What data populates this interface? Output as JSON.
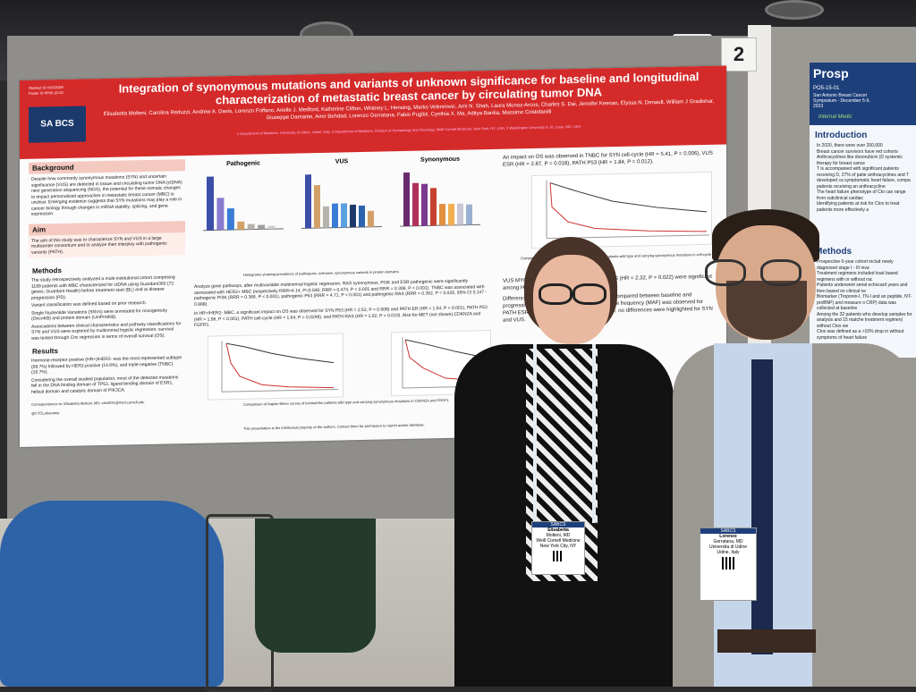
{
  "board_number": "2",
  "poster": {
    "title": "Integration of synonymous mutations and variants of unknown significance for baseline and longitudinal characterization of metastatic breast cancer by circulating tumor DNA",
    "authors": "Elisabetta Molteni, Carolina Reduzzi, Andrew A. Davis, Lorenzo Foffano, Arielle J. Medford, Katherine Clifton, Whitney L. Hensing, Marko Velimirovic, Ami N. Shah, Laura Munoz-Arcos, Charles S. Dai, Jennifer Keenan, Elyssa N. Denault, William J Gradishar, Giuseppe Damante, Amir Behdad, Lorenzo Gerratana, Fabio Puglisi, Cynthia X. Ma, Aditya Bardia, Massimo Cristofanilli",
    "logo_text": "SA BCS",
    "sections": {
      "background": {
        "heading": "Background",
        "text": "Despite how commonly synonymous mutations (SYN) and uncertain significance (VUS) are detected in tissue and circulating tumor DNA (ctDNA) next generation sequencing (NGS), the potential for these somatic changes to impact personalized approaches in metastatic breast cancer (MBC) is unclear. Emerging evidence suggests that SYN mutations may play a role in cancer biology through changes in mRNA stability, splicing, and gene expression."
      },
      "aim": {
        "heading": "Aim",
        "text": "The aim of this study was to characterize SYN and VUS in a large multicenter consortium and to analyze their interplay with pathogenic variants (PATH)."
      },
      "methods": {
        "heading": "Methods",
        "items": [
          "The study retrospectively analyzed a multi-institutional cohort comprising 1189 patients with MBC characterized for ctDNA using Guardant360 (72 genes, Guardant Health) before treatment start (BL) and at disease progression (PD).",
          "Variant classification was defined based on prior research.",
          "Single Nucleotide Variations (SNVs) were annotated for oncogenicity (OncoKB) and protein domain (UniProtKB).",
          "Associations between clinical characteristics and pathway classifications for SYN and VUS were explored by multinomial logistic regression; survival was tested through Cox regression in terms of overall survival (OS)."
        ]
      },
      "results": {
        "heading": "Results",
        "items": [
          "Hormone-receptor positive (HR+)/HER2- was the most represented subtype (68.7%) followed by HER2-positive (14.6%), and triple-negative (TNBC) (16.7%).",
          "Considering the overall studied population, most of the detected mutations fell in the DNA binding domain of TP53, ligand binding domain of ESR1, helical domain and catalytic domain of PIK3CA."
        ]
      },
      "center_text": [
        "Analyze gene pathways, after multivariable multinomial logistic regression, RAS synonymous, PI3K and ESR pathogenic were significantly associated with HER2+ MBC (respectively RRR=4.14, P=0.046; RRR = 0.474, P < 0.001 and RRR = 0.306, P < 0.001). TNBC was associated with pathogenic PI3K (RRR = 0.366, P < 0.001), pathogenic P53 (RRR = 4.71, P < 0.001) and pathogenic RAS (RRR = 0.362, P = 0.026, 95% CI 0.147 - 0.888).",
        "In HR+/HER2- MBC, a significant impact on OS was observed for SYN P53 (HR = 2.53, P = 0.008) and PATH ER (HR = 1.54, P < 0.001), PATH P53 (HR = 1.56, P < 0.001), PATH cell-cycle (HR = 1.64, P = 0.0299), and PATH RAS (HR = 1.62, P = 0.010). Also for MET (not shown),CDKN2A and FGFR1."
      ],
      "right_text": [
        "An impact on OS was observed in TNBC for SYN cell-cycle (HR = 5.41, P = 0.006), VUS ESR (HR = 2.87, P = 0.018), PATH P53 (HR = 1.84, P = 0.012).",
        "VUS MYC (HR = 3.40, P = 0.005) and VUS RAS (HR = 2.32, P = 0.022) were significant among HER2 positive.",
        "Differences in SYN, VUS and PATH were then compared between baseline and progressive disease. An increase in mutant allele frequency (MAF) was observed for PATH ESR (P = 0.0152) at progression disease, no differences were highlighted for SYN and VUS."
      ],
      "hist_caption": "Histograms showing prevalence of pathogenic, unknown, synonymous variants in protein domains",
      "km_caption": "Comparison of Kaplan-Meier curves of luminal-like patients wild type and carrying synonymous mutations in CDKN2A and FRGF1",
      "km_caption_right": "Comparison of Kaplan-Meier curves of triple negative patients wild type and carrying synonymous mutations in cell-cycle",
      "correspondence": "Correspondence to: Elisabetta Molteni, MD; elm4021@med.cornell.edu",
      "handle": "@CTCLaboratory",
      "footer": "This presentation is the intellectual property of the authors. Contact them for permission to reprint and/or distribute."
    }
  },
  "chart_data": [
    {
      "type": "bar",
      "title": "Pathogenic",
      "values": [
        100,
        60,
        40,
        15,
        10,
        8,
        6
      ],
      "colors": [
        "#3b4fa8",
        "#8a7bd0",
        "#3a7bd5",
        "#d4a06a",
        "#b5b3ab",
        "#a0a0a0",
        "#cfcfcf"
      ]
    },
    {
      "type": "bar",
      "title": "VUS",
      "values": [
        100,
        80,
        40,
        45,
        45,
        42,
        40,
        30
      ],
      "colors": [
        "#3b4fa8",
        "#d4a06a",
        "#b5b3ab",
        "#3a7bd5",
        "#5aa0e0",
        "#1b3a6b",
        "#2b63b0",
        "#d4a06a"
      ]
    },
    {
      "type": "bar",
      "title": "Synonymous",
      "values": [
        100,
        80,
        78,
        70,
        40,
        40,
        40,
        38
      ],
      "colors": [
        "#6a2a6e",
        "#b0305a",
        "#7a3a8e",
        "#c84030",
        "#e09040",
        "#f0b050",
        "#c8c8d8",
        "#9ab0d0"
      ]
    }
  ],
  "right_poster": {
    "title": "Prosp",
    "code": "PO5-15-01",
    "meeting": "San Antonio Breast Cancer Symposium - December 5-9, 2023",
    "sub": "Internal Medic",
    "intro_heading": "Introduction",
    "methods_heading": "Methods",
    "intro_items": [
      "In 2020, there were over 200,000",
      "Breast cancer survivors have red cohorts",
      "Anthracyclines like doxorubicin (D systemic therapy for breast cance",
      "T is accompanied with significant patients receiving D, 27% of patie anthracyclines and T developed ca symptomatic heart failure, compa patients receiving an anthracycline",
      "The heart failure phenotype of Cto can range from subclinical cardiac",
      "Identifying patients at risk for Ctox to treat patients more effectively a"
    ],
    "methods_items": [
      "Prospective 6-year cohort includ newly diagnosed stage I - III inva",
      "Treatment regimens included trast based regimens with or without rac",
      "Patients underwent serial echocard years and then based on clinical ne",
      "Biomarker (Troponin-I, TN-I and an peptide, NT-proBNP) and measure o CRP) data was collected at baseline",
      "Among the 32 patients who develop samples for analysis and 15 matche treatment regimen) without Ctox we",
      "Ctox was defined as a >10% drop in without symptoms of heart failure"
    ]
  },
  "badges": {
    "left": {
      "logo": "SABCS",
      "name": "Elisabetta",
      "line2": "Molteni, MD",
      "org": "Weill Cornell Medicine",
      "city": "New York City, NY"
    },
    "right": {
      "logo": "SABCS",
      "name": "Lorenzo",
      "line2": "Gerratana, MD",
      "org": "Universita di Udine",
      "city": "Udine, Italy"
    }
  },
  "colors": {
    "header_red": "#d52a2a",
    "section_pink": "#f4c9c0",
    "board_gray": "#8f8e8a",
    "right_blue": "#1d3f7a"
  }
}
